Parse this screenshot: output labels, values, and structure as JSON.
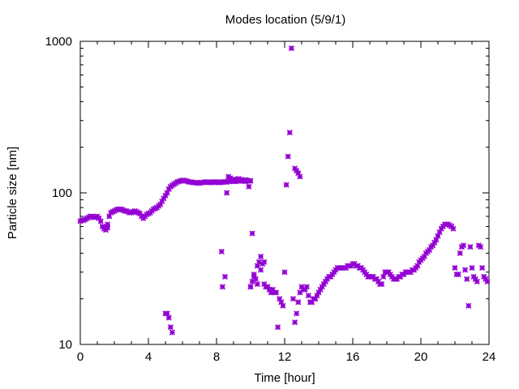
{
  "chart_data": {
    "type": "scatter",
    "title": "Modes location (5/9/1)",
    "xlabel": "Time [hour]",
    "ylabel": "Particle size [nm]",
    "xlim": [
      0,
      24
    ],
    "ylim": [
      10,
      1000
    ],
    "yscale": "log",
    "x_ticks": [
      "0",
      "4",
      "8",
      "12",
      "16",
      "20",
      "24"
    ],
    "y_ticks": [
      "10",
      "100",
      "1000"
    ],
    "grid": false,
    "marker": "asterisk",
    "colors": {
      "points": "#9400d3"
    },
    "series": [
      {
        "x": [
          0.0,
          0.1,
          0.2,
          0.3,
          0.4,
          0.5,
          0.6,
          0.7,
          0.8,
          0.9,
          1.0,
          1.1,
          1.2,
          1.3,
          1.4,
          1.5,
          1.6,
          1.7,
          1.8,
          1.9,
          2.0,
          2.1,
          2.2,
          2.3,
          2.4,
          2.5,
          2.6,
          2.7,
          2.8,
          2.9,
          3.0,
          3.1,
          3.2,
          3.3,
          3.4,
          3.5,
          3.6,
          3.7,
          3.8,
          3.9,
          4.0,
          4.1,
          4.2,
          4.3,
          4.4,
          4.5,
          4.6,
          4.7,
          4.8,
          4.9,
          5.0,
          5.1,
          5.2,
          5.3,
          5.4,
          5.5,
          5.6,
          5.7,
          5.8,
          5.9,
          6.0,
          6.1,
          6.2,
          6.3,
          6.4,
          6.5,
          6.6,
          6.7,
          6.8,
          6.9,
          7.0,
          7.1,
          7.2,
          7.3,
          7.4,
          7.5,
          7.6,
          7.7,
          7.8,
          7.9,
          8.0,
          8.1,
          8.2,
          8.3,
          8.4,
          8.5,
          8.6,
          8.7,
          8.8,
          8.9,
          9.0,
          9.1,
          9.2,
          9.3,
          9.4,
          9.5,
          9.6,
          9.7,
          9.8,
          9.9,
          10.0
        ],
        "y": [
          65,
          66,
          66,
          67,
          68,
          69,
          70,
          70,
          69,
          69,
          70,
          68,
          65,
          60,
          58,
          59,
          62,
          70,
          74,
          75,
          76,
          77,
          78,
          78,
          78,
          77,
          76,
          76,
          75,
          74,
          74,
          75,
          76,
          75,
          74,
          73,
          70,
          68,
          70,
          72,
          73,
          74,
          76,
          78,
          79,
          80,
          82,
          84,
          88,
          92,
          96,
          100,
          106,
          110,
          112,
          114,
          116,
          118,
          119,
          120,
          121,
          121,
          120,
          119,
          118,
          118,
          117,
          117,
          117,
          116,
          116,
          117,
          117,
          118,
          118,
          118,
          117,
          117,
          118,
          118,
          118,
          117,
          117,
          118,
          118,
          118,
          118,
          119,
          120,
          121,
          119,
          119,
          120,
          120,
          121,
          120,
          120,
          119,
          120,
          120,
          120
        ]
      },
      {
        "x": [
          1.5,
          1.6,
          8.3,
          8.35,
          8.5,
          8.6,
          8.7,
          8.8,
          8.9,
          9.0,
          9.1,
          9.2,
          9.3,
          9.4,
          9.5,
          9.6,
          9.7,
          9.8,
          9.9,
          10.0,
          10.1,
          10.2,
          10.4,
          10.6,
          10.8
        ],
        "y": [
          57,
          59,
          41,
          24,
          28,
          100,
          128,
          125,
          122,
          123,
          120,
          122,
          124,
          122,
          121,
          120,
          122,
          121,
          110,
          24,
          54,
          28,
          25,
          31,
          35
        ]
      },
      {
        "x": [
          5.0,
          5.1,
          5.2,
          5.3,
          5.4
        ],
        "y": [
          16,
          16,
          15,
          13,
          12
        ]
      },
      {
        "x": [
          10.0,
          10.1,
          10.2,
          10.3,
          10.4,
          10.5,
          10.6,
          10.7,
          10.8,
          10.9,
          11.0,
          11.1,
          11.2,
          11.3,
          11.4,
          11.5,
          11.6,
          11.7,
          11.8,
          11.9,
          12.0,
          12.1,
          12.2,
          12.3,
          12.4,
          12.5,
          12.6,
          12.7,
          12.8,
          12.9,
          13.0,
          13.1,
          13.2,
          13.3,
          13.4,
          13.5,
          13.6,
          13.7,
          13.8,
          13.9,
          14.0,
          14.1,
          14.2,
          14.3,
          14.4,
          14.5,
          14.6,
          14.7,
          14.8,
          14.9,
          15.0,
          15.1,
          15.2,
          15.3,
          15.4,
          15.5,
          15.6,
          15.7,
          15.8,
          15.9,
          16.0,
          16.1,
          16.2,
          16.3,
          16.4,
          16.5,
          16.6,
          16.7,
          16.8,
          16.9,
          17.0,
          17.1,
          17.2,
          17.3,
          17.4,
          17.5,
          17.6,
          17.7,
          17.8,
          17.9,
          18.0,
          18.1,
          18.2,
          18.3,
          18.4,
          18.5,
          18.6,
          18.7,
          18.8,
          18.9,
          19.0,
          19.1,
          19.2,
          19.3,
          19.4,
          19.5,
          19.6,
          19.7,
          19.8,
          19.9,
          20.0,
          20.1,
          20.2,
          20.3,
          20.4,
          20.5,
          20.6,
          20.7,
          20.8,
          20.9,
          21.0,
          21.1,
          21.2,
          21.3,
          21.4,
          21.5,
          21.6,
          21.7,
          21.8,
          21.9,
          22.0,
          22.1,
          22.2,
          22.3,
          22.4,
          22.5,
          22.6,
          22.7,
          22.8,
          22.9,
          23.0,
          23.1,
          23.2,
          23.3,
          23.4,
          23.5,
          23.6,
          23.7,
          23.8,
          23.9
        ],
        "y": [
          24,
          26,
          29,
          27,
          33,
          35,
          38,
          34,
          25,
          24,
          24,
          23,
          22,
          23,
          22,
          22,
          13,
          20,
          19,
          18,
          30,
          113,
          174,
          250,
          900,
          20,
          14,
          16,
          19,
          22,
          24,
          23,
          23,
          24,
          21,
          19,
          19,
          20,
          20,
          21,
          22,
          23,
          24,
          25,
          26,
          27,
          28,
          28,
          29,
          30,
          31,
          32,
          32,
          32,
          32,
          32,
          32,
          33,
          33,
          33,
          34,
          34,
          33,
          33,
          32,
          32,
          31,
          30,
          29,
          28,
          28,
          28,
          28,
          27,
          27,
          26,
          25,
          25,
          28,
          30,
          30,
          30,
          29,
          28,
          27,
          27,
          27,
          28,
          28,
          29,
          29,
          30,
          30,
          30,
          30,
          31,
          31,
          32,
          33,
          35,
          36,
          37,
          38,
          40,
          41,
          42,
          44,
          45,
          47,
          49,
          52,
          55,
          58,
          60,
          62,
          62,
          62,
          61,
          60,
          58,
          32,
          29,
          29,
          40,
          44,
          45,
          31,
          27,
          18,
          44,
          32,
          28,
          27,
          26,
          45,
          44,
          32,
          28,
          27,
          26
        ]
      },
      {
        "x": [
          12.6,
          12.7,
          12.8,
          12.9
        ],
        "y": [
          145,
          140,
          135,
          128
        ]
      }
    ]
  }
}
